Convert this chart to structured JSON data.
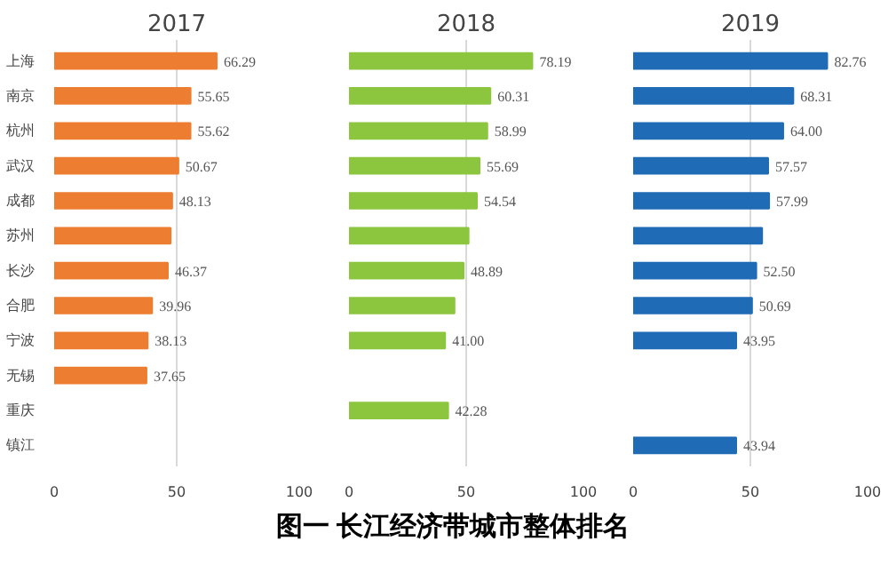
{
  "chart_data": [
    {
      "type": "bar",
      "orientation": "horizontal",
      "title": "2017",
      "categories": [
        "上海",
        "南京",
        "杭州",
        "武汉",
        "成都",
        "苏州",
        "长沙",
        "合肥",
        "宁波",
        "无锡",
        "重庆",
        "镇江"
      ],
      "values": [
        66.29,
        55.65,
        55.62,
        50.67,
        48.13,
        47.5,
        46.37,
        39.96,
        38.13,
        37.65,
        null,
        null
      ],
      "value_labels": [
        "66.29",
        "55.65",
        "55.62",
        "50.67",
        "48.13",
        null,
        "46.37",
        "39.96",
        "38.13",
        "37.65",
        null,
        null
      ],
      "color": "#ed7d31",
      "xlim": [
        0,
        100
      ],
      "xticks": [
        0,
        50,
        100
      ],
      "grid": "x"
    },
    {
      "type": "bar",
      "orientation": "horizontal",
      "title": "2018",
      "categories": [
        null,
        null,
        null,
        null,
        null,
        null,
        null,
        null,
        null,
        null,
        null,
        null
      ],
      "values": [
        78.19,
        60.31,
        58.99,
        55.69,
        54.54,
        51,
        48.89,
        45,
        41.0,
        null,
        42.28,
        null
      ],
      "value_labels": [
        "78.19",
        "60.31",
        "58.99",
        "55.69",
        "54.54",
        null,
        "48.89",
        null,
        "41.00",
        null,
        "42.28",
        null
      ],
      "color": "#8cc63f",
      "xlim": [
        0,
        100
      ],
      "xticks": [
        0,
        50,
        100
      ],
      "grid": "x",
      "tick_labels": "x",
      "annotations": [
        "图一  长江经济带城市整体排名"
      ]
    },
    {
      "type": "bar",
      "orientation": "horizontal",
      "title": "2019",
      "categories": [
        null,
        null,
        null,
        null,
        null,
        null,
        null,
        null,
        null,
        null,
        null,
        null
      ],
      "values": [
        82.76,
        68.31,
        64.0,
        57.57,
        57.99,
        55,
        52.5,
        50.69,
        43.95,
        null,
        null,
        43.94
      ],
      "value_labels": [
        "82.76",
        "68.31",
        "64.00",
        "57.57",
        "57.99",
        null,
        "52.50",
        "50.69",
        "43.95",
        null,
        null,
        "43.94"
      ],
      "color": "#1f6bb5",
      "xlim": [
        0,
        100
      ],
      "xticks": [
        0,
        50,
        100
      ],
      "grid": "x",
      "tick_labels": "x"
    }
  ]
}
